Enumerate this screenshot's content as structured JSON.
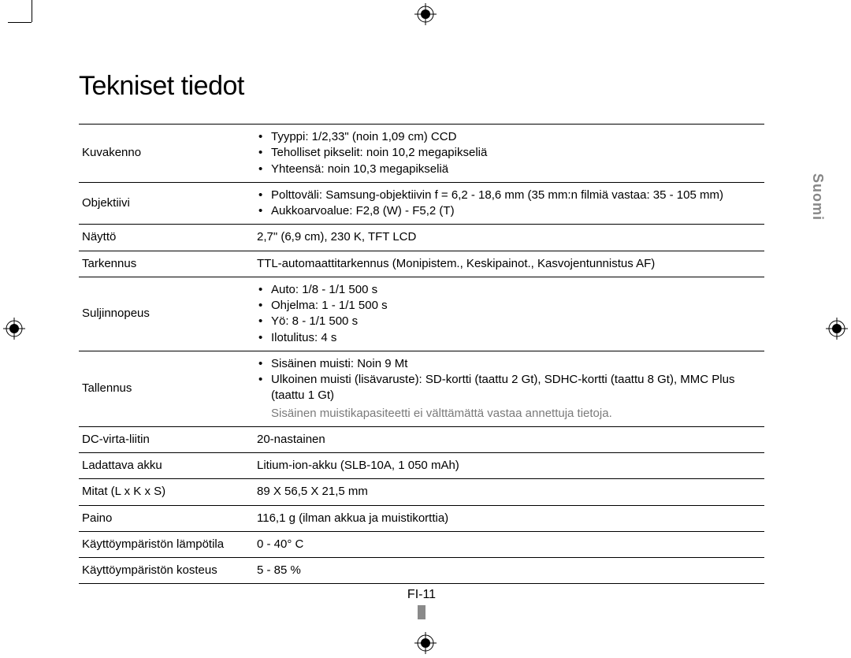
{
  "title": "Tekniset tiedot",
  "language_tab": "Suomi",
  "page_number": "FI-11",
  "rows": [
    {
      "label": "Kuvakenno",
      "bullets": [
        "Tyyppi: 1/2,33\" (noin 1,09 cm) CCD",
        "Teholliset pikselit: noin 10,2 megapikseliä",
        "Yhteensä: noin 10,3 megapikseliä"
      ]
    },
    {
      "label": "Objektiivi",
      "bullets": [
        "Polttoväli: Samsung-objektiivin f = 6,2 - 18,6 mm (35 mm:n filmiä vastaa: 35 - 105 mm)",
        "Aukkoarvoalue: F2,8 (W) - F5,2 (T)"
      ]
    },
    {
      "label": "Näyttö",
      "text": "2,7\" (6,9 cm), 230 K, TFT LCD"
    },
    {
      "label": "Tarkennus",
      "text": "TTL-automaattitarkennus (Monipistem., Keskipainot., Kasvojentunnistus AF)"
    },
    {
      "label": "Suljinnopeus",
      "bullets": [
        "Auto: 1/8 - 1/1 500 s",
        "Ohjelma: 1 - 1/1 500 s",
        "Yö: 8 - 1/1 500 s",
        "Ilotulitus: 4 s"
      ]
    },
    {
      "label": "Tallennus",
      "bullets": [
        "Sisäinen muisti: Noin 9 Mt",
        "Ulkoinen muisti (lisävaruste): SD-kortti (taattu 2 Gt), SDHC-kortti (taattu 8 Gt), MMC Plus (taattu 1 Gt)"
      ],
      "note": "Sisäinen muistikapasiteetti ei välttämättä vastaa annettuja tietoja."
    },
    {
      "label": "DC-virta-liitin",
      "text": "20-nastainen"
    },
    {
      "label": "Ladattava akku",
      "text": "Litium-ion-akku (SLB-10A, 1 050 mAh)"
    },
    {
      "label": "Mitat (L x K x S)",
      "text": "89 X 56,5 X 21,5 mm"
    },
    {
      "label": "Paino",
      "text": "116,1 g (ilman akkua ja muistikorttia)"
    },
    {
      "label": "Käyttöympäristön lämpötila",
      "text": "0 - 40° C"
    },
    {
      "label": "Käyttöympäristön kosteus",
      "text": "5 - 85 %"
    }
  ]
}
